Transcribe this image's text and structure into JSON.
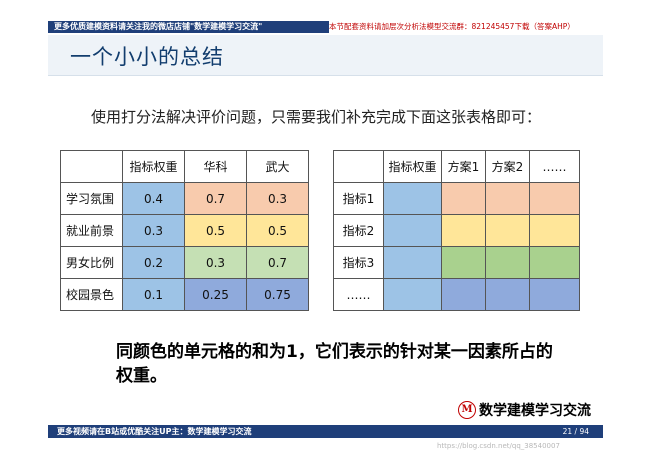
{
  "header": {
    "left_banner": "更多优质建模资料请关注我的微店店铺\"数学建模学习交流\"",
    "right_banner": "本节配套资料请加层次分析法模型交流群：821245457下载（答案AHP）",
    "title": "一个小小的总结"
  },
  "intro": "使用打分法解决评价问题，只需要我们补充完成下面这张表格即可：",
  "colors": {
    "blue": "#9dc3e6",
    "orange": "#f8cbad",
    "yellow": "#ffe699",
    "green": "#c5e0b4",
    "navy": "#8faadc",
    "green_b": "#a9d18e"
  },
  "table_a": {
    "headers": [
      "",
      "指标权重",
      "华科",
      "武大"
    ],
    "rows": [
      {
        "label": "学习氛围",
        "values": [
          "0.4",
          "0.7",
          "0.3"
        ],
        "color": "orange"
      },
      {
        "label": "就业前景",
        "values": [
          "0.3",
          "0.5",
          "0.5"
        ],
        "color": "yellow"
      },
      {
        "label": "男女比例",
        "values": [
          "0.2",
          "0.3",
          "0.7"
        ],
        "color": "green"
      },
      {
        "label": "校园景色",
        "values": [
          "0.1",
          "0.25",
          "0.75"
        ],
        "color": "navy"
      }
    ]
  },
  "table_b": {
    "headers": [
      "",
      "指标权重",
      "方案1",
      "方案2",
      "……"
    ],
    "rows": [
      {
        "label": "指标1",
        "color": "orange"
      },
      {
        "label": "指标2",
        "color": "yellow"
      },
      {
        "label": "指标3",
        "color": "green_b"
      },
      {
        "label": "……",
        "color": "navy"
      }
    ]
  },
  "summary": "同颜色的单元格的和为1，它们表示的针对某一因素所占的权重。",
  "brand": {
    "logo_letter": "M",
    "name": "数学建模学习交流"
  },
  "footer": {
    "text": "更多视频请在B站或优酷关注UP主：数学建模学习交流",
    "page": "21 / 94",
    "watermark": "https://blog.csdn.net/qq_38540007"
  }
}
